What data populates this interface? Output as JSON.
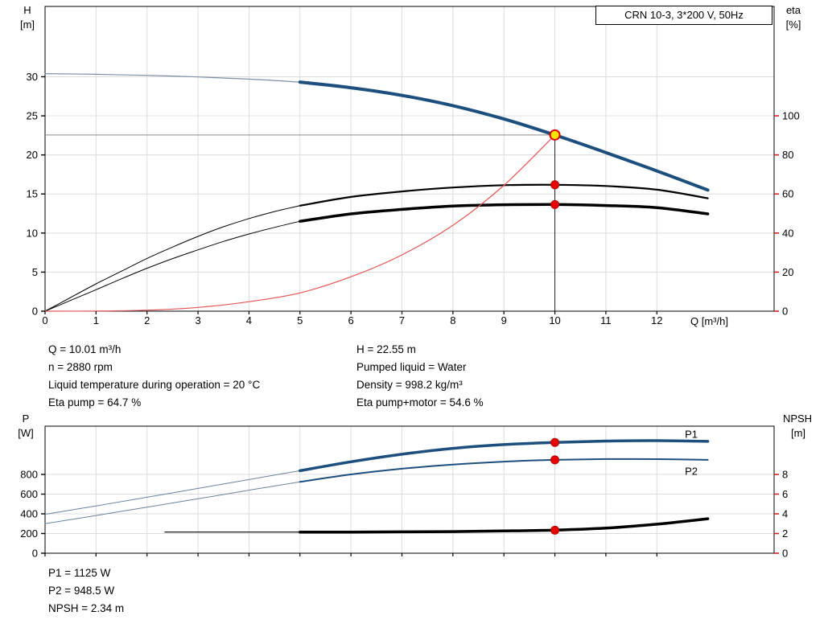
{
  "axis_labels": {
    "h_unit_top": "H",
    "h_unit_bottom": "[m]",
    "eta_unit_top": "eta",
    "eta_unit_bottom": "[%]",
    "q_axis": "Q [m³/h]",
    "p_unit_top": "P",
    "p_unit_bottom": "[W]",
    "npsh_unit_top": "NPSH",
    "npsh_unit_bottom": "[m]"
  },
  "info_block": {
    "left": [
      "Q = 10.01 m³/h",
      "n = 2880 rpm",
      "Liquid temperature during operation = 20 °C",
      "Eta pump = 64.7 %"
    ],
    "right": [
      "H = 22.55 m",
      "Pumped liquid = Water",
      "Density = 998.2 kg/m³",
      "Eta pump+motor = 54.6 %"
    ]
  },
  "result_block": [
    "P1 = 1125 W",
    "P2 = 948.5 W",
    "NPSH = 2.34 m"
  ],
  "colors": {
    "curve_blue": "#1d4f7e",
    "curve_blue_thin": "#7a8fa6",
    "curve_black": "#000000",
    "system_red": "#e25555",
    "marker_red": "#e80000",
    "marker_yellow": "#ffe600",
    "grid": "#dcdcdc",
    "right_tick": "#cc2222",
    "duty_line": "#8a8a8a"
  },
  "chart_data": [
    {
      "type": "line",
      "name": "head-efficiency-chart",
      "title": "CRN 10-3, 3*200 V, 50Hz",
      "x": {
        "min": 0,
        "max": 14.3,
        "ticks": [
          0,
          1,
          2,
          3,
          4,
          5,
          6,
          7,
          8,
          9,
          10,
          11,
          12
        ],
        "label": "Q [m³/h]",
        "show_tick_labels": true
      },
      "y_left": {
        "min": 0,
        "max": 39,
        "ticks": [
          0,
          5,
          10,
          15,
          20,
          25,
          30
        ],
        "label": "H [m]"
      },
      "y_right": {
        "min": 0,
        "max": 156,
        "ticks": [
          0,
          20,
          40,
          60,
          80,
          100
        ],
        "label": "eta [%]"
      },
      "series": [
        {
          "name": "head-curve-low-flow",
          "axis": "left",
          "color": "#7a8fa6",
          "width": 1.2,
          "points": [
            [
              0,
              30.4
            ],
            [
              1,
              30.32
            ],
            [
              2,
              30.18
            ],
            [
              3,
              29.98
            ],
            [
              4,
              29.7
            ],
            [
              5,
              29.32
            ]
          ]
        },
        {
          "name": "head-curve",
          "axis": "left",
          "color": "#1d4f7e",
          "width": 4,
          "points": [
            [
              5,
              29.32
            ],
            [
              6,
              28.6
            ],
            [
              7,
              27.62
            ],
            [
              8,
              26.3
            ],
            [
              9,
              24.6
            ],
            [
              10,
              22.55
            ],
            [
              11,
              20.3
            ],
            [
              12,
              17.95
            ],
            [
              13,
              15.5
            ]
          ]
        },
        {
          "name": "eta-pump-low-flow",
          "axis": "right",
          "color": "#000000",
          "width": 1,
          "points": [
            [
              0,
              0
            ],
            [
              0.5,
              7
            ],
            [
              1,
              14
            ],
            [
              1.5,
              20.5
            ],
            [
              2,
              27
            ],
            [
              2.5,
              32.8
            ],
            [
              3,
              38.3
            ],
            [
              3.5,
              43.2
            ],
            [
              4,
              47.4
            ],
            [
              4.5,
              51
            ],
            [
              5,
              54
            ]
          ]
        },
        {
          "name": "eta-pump-curve",
          "axis": "right",
          "color": "#000000",
          "width": 2.2,
          "points": [
            [
              5,
              54
            ],
            [
              6,
              58.5
            ],
            [
              7,
              61.3
            ],
            [
              8,
              63.3
            ],
            [
              9,
              64.5
            ],
            [
              10,
              64.7
            ],
            [
              11,
              64.1
            ],
            [
              12,
              62.2
            ],
            [
              13,
              57.8
            ]
          ]
        },
        {
          "name": "eta-pump-motor-low-flow",
          "axis": "right",
          "color": "#000000",
          "width": 1,
          "points": [
            [
              0,
              0
            ],
            [
              0.5,
              5.5
            ],
            [
              1,
              11
            ],
            [
              1.5,
              16.6
            ],
            [
              2,
              22
            ],
            [
              2.5,
              26.9
            ],
            [
              3,
              31.4
            ],
            [
              3.5,
              35.7
            ],
            [
              4,
              39.5
            ],
            [
              4.5,
              42.9
            ],
            [
              5,
              46
            ]
          ]
        },
        {
          "name": "eta-pump-motor-curve",
          "axis": "right",
          "color": "#000000",
          "width": 3.5,
          "points": [
            [
              5,
              46
            ],
            [
              6,
              49.8
            ],
            [
              7,
              52.1
            ],
            [
              8,
              53.8
            ],
            [
              9,
              54.5
            ],
            [
              10,
              54.6
            ],
            [
              11,
              54.1
            ],
            [
              12,
              53
            ],
            [
              13,
              49.8
            ]
          ]
        },
        {
          "name": "system-curve",
          "axis": "left",
          "color": "#e25555",
          "width": 1.2,
          "points": [
            [
              0,
              0
            ],
            [
              1,
              0.02
            ],
            [
              2,
              0.13
            ],
            [
              3,
              0.48
            ],
            [
              4,
              1.21
            ],
            [
              5,
              2.34
            ],
            [
              6,
              4.4
            ],
            [
              7,
              7.2
            ],
            [
              8,
              11.0
            ],
            [
              9,
              16.1
            ],
            [
              10,
              22.55
            ]
          ]
        }
      ],
      "lines": [
        {
          "name": "duty-head-line",
          "axis": "left",
          "color": "#8a8a8a",
          "width": 1,
          "from": [
            0,
            22.55
          ],
          "to": [
            10,
            22.55
          ]
        },
        {
          "name": "duty-flow-line",
          "axis": "left",
          "color": "#222222",
          "width": 1,
          "from": [
            10,
            0
          ],
          "to": [
            10,
            22.55
          ]
        }
      ],
      "markers": [
        {
          "name": "duty-point",
          "axis": "left",
          "x": 10,
          "y": 22.55,
          "r": 6,
          "fill": "#ffe600",
          "stroke": "#e00000",
          "sw": 2
        },
        {
          "name": "eta-pump-point",
          "axis": "right",
          "x": 10,
          "y": 64.7,
          "r": 5,
          "fill": "#e80000",
          "stroke": "#b00000",
          "sw": 1
        },
        {
          "name": "eta-pump-motor-point",
          "axis": "right",
          "x": 10,
          "y": 54.6,
          "r": 5,
          "fill": "#e80000",
          "stroke": "#b00000",
          "sw": 1
        }
      ],
      "labels": []
    },
    {
      "type": "line",
      "name": "power-npsh-chart",
      "title": "",
      "x": {
        "min": 0,
        "max": 14.3,
        "ticks": [
          0,
          1,
          2,
          3,
          4,
          5,
          6,
          7,
          8,
          9,
          10,
          11,
          12
        ],
        "label": "Q [m³/h]",
        "show_tick_labels": false
      },
      "y_left": {
        "min": 0,
        "max": 1290,
        "ticks": [
          0,
          200,
          400,
          600,
          800
        ],
        "label": "P [W]"
      },
      "y_right": {
        "min": 0,
        "max": 12.9,
        "ticks": [
          0,
          2,
          4,
          6,
          8
        ],
        "label": "NPSH [m]"
      },
      "series": [
        {
          "name": "p1-low-flow",
          "axis": "left",
          "color": "#6b83a0",
          "width": 1,
          "points": [
            [
              0,
              395
            ],
            [
              1,
              480
            ],
            [
              2,
              568
            ],
            [
              3,
              658
            ],
            [
              4,
              748
            ],
            [
              5,
              838
            ]
          ]
        },
        {
          "name": "p1-curve",
          "axis": "left",
          "color": "#1d4f7e",
          "width": 3.5,
          "points": [
            [
              5,
              838
            ],
            [
              6,
              928
            ],
            [
              7,
              1005
            ],
            [
              8,
              1065
            ],
            [
              9,
              1103
            ],
            [
              10,
              1125
            ],
            [
              11,
              1139
            ],
            [
              12,
              1143
            ],
            [
              13,
              1136
            ]
          ]
        },
        {
          "name": "p2-low-flow",
          "axis": "left",
          "color": "#6b83a0",
          "width": 1,
          "points": [
            [
              0,
              300
            ],
            [
              1,
              383
            ],
            [
              2,
              468
            ],
            [
              3,
              553
            ],
            [
              4,
              640
            ],
            [
              5,
              725
            ]
          ]
        },
        {
          "name": "p2-curve",
          "axis": "left",
          "color": "#1d4f7e",
          "width": 2,
          "points": [
            [
              5,
              725
            ],
            [
              6,
              800
            ],
            [
              7,
              858
            ],
            [
              8,
              900
            ],
            [
              9,
              930
            ],
            [
              10,
              948
            ],
            [
              11,
              956
            ],
            [
              12,
              955
            ],
            [
              13,
              948
            ]
          ]
        },
        {
          "name": "npsh-low-flow",
          "axis": "right",
          "color": "#000000",
          "width": 1.2,
          "points": [
            [
              2.35,
              2.15
            ],
            [
              3,
              2.15
            ],
            [
              4,
              2.15
            ],
            [
              5,
              2.15
            ]
          ]
        },
        {
          "name": "npsh-curve",
          "axis": "right",
          "color": "#000000",
          "width": 3.5,
          "points": [
            [
              5,
              2.15
            ],
            [
              6,
              2.15
            ],
            [
              7,
              2.17
            ],
            [
              8,
              2.2
            ],
            [
              9,
              2.26
            ],
            [
              10,
              2.34
            ],
            [
              11,
              2.55
            ],
            [
              12,
              2.95
            ],
            [
              13,
              3.5
            ]
          ]
        }
      ],
      "lines": [],
      "markers": [
        {
          "name": "p1-point",
          "axis": "left",
          "x": 10,
          "y": 1125,
          "r": 5,
          "fill": "#e80000",
          "stroke": "#b00000",
          "sw": 1
        },
        {
          "name": "p2-point",
          "axis": "left",
          "x": 10,
          "y": 948,
          "r": 5,
          "fill": "#e80000",
          "stroke": "#b00000",
          "sw": 1
        },
        {
          "name": "npsh-point",
          "axis": "right",
          "x": 10,
          "y": 2.34,
          "r": 5,
          "fill": "#e80000",
          "stroke": "#b00000",
          "sw": 1
        }
      ],
      "labels": [
        {
          "name": "p1-label",
          "text": "P1",
          "axis": "left",
          "x": 12.55,
          "y": 1205,
          "color": "#1d4f7e"
        },
        {
          "name": "p2-label",
          "text": "P2",
          "axis": "left",
          "x": 12.55,
          "y": 830,
          "color": "#1d4f7e"
        }
      ]
    }
  ]
}
